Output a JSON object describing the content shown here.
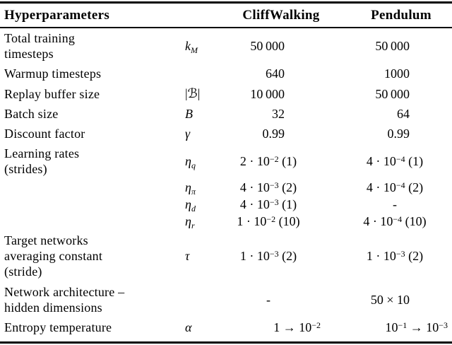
{
  "table": {
    "header": {
      "hyperparameters": "Hyperparameters",
      "cliffwalking": "CliffWalking",
      "pendulum": "Pendulum"
    },
    "rows": [
      {
        "label_lines": [
          "Total training",
          "timesteps"
        ],
        "symbol": [
          [
            "i",
            "k"
          ],
          [
            "sub",
            "M"
          ]
        ],
        "cliffwalking": {
          "align": "right",
          "parts": [
            [
              "t",
              "50 000"
            ]
          ]
        },
        "pendulum": {
          "align": "right",
          "parts": [
            [
              "t",
              "50 000"
            ]
          ]
        }
      },
      {
        "label_lines": [
          "Warmup timesteps"
        ],
        "symbol": [],
        "cliffwalking": {
          "align": "right",
          "parts": [
            [
              "t",
              "640"
            ]
          ]
        },
        "pendulum": {
          "align": "right",
          "parts": [
            [
              "t",
              "1000"
            ]
          ]
        }
      },
      {
        "label_lines": [
          "Replay buffer size"
        ],
        "symbol": [
          [
            "t",
            "|"
          ],
          [
            "scr",
            "ℬ"
          ],
          [
            "t",
            "|"
          ]
        ],
        "cliffwalking": {
          "align": "right",
          "parts": [
            [
              "t",
              "10 000"
            ]
          ]
        },
        "pendulum": {
          "align": "right",
          "parts": [
            [
              "t",
              "50 000"
            ]
          ]
        }
      },
      {
        "label_lines": [
          "Batch size"
        ],
        "symbol": [
          [
            "i",
            "B"
          ]
        ],
        "cliffwalking": {
          "align": "right",
          "parts": [
            [
              "t",
              "32"
            ]
          ]
        },
        "pendulum": {
          "align": "right",
          "parts": [
            [
              "t",
              "64"
            ]
          ]
        }
      },
      {
        "label_lines": [
          "Discount factor"
        ],
        "symbol": [
          [
            "i",
            "γ"
          ]
        ],
        "cliffwalking": {
          "align": "right",
          "parts": [
            [
              "t",
              "0.99"
            ]
          ]
        },
        "pendulum": {
          "align": "right",
          "parts": [
            [
              "t",
              "0.99"
            ]
          ]
        }
      },
      {
        "label_lines": [
          "Learning rates",
          "(strides)"
        ],
        "symbol": [
          [
            "i",
            "η"
          ],
          [
            "sub",
            "q"
          ]
        ],
        "cliffwalking": {
          "align": "center",
          "parts": [
            [
              "t",
              "2 · 10"
            ],
            [
              "sup",
              "−2"
            ],
            [
              "t",
              " (1)"
            ]
          ]
        },
        "pendulum": {
          "align": "center",
          "parts": [
            [
              "t",
              "4 · 10"
            ],
            [
              "sup",
              "−4"
            ],
            [
              "t",
              " (1)"
            ]
          ]
        }
      },
      {
        "label_lines": [],
        "symbol": [
          [
            "i",
            "η"
          ],
          [
            "sub",
            "π"
          ]
        ],
        "cliffwalking": {
          "align": "center",
          "parts": [
            [
              "t",
              "4 · 10"
            ],
            [
              "sup",
              "−3"
            ],
            [
              "t",
              " (2)"
            ]
          ]
        },
        "pendulum": {
          "align": "center",
          "parts": [
            [
              "t",
              "4 · 10"
            ],
            [
              "sup",
              "−4"
            ],
            [
              "t",
              " (2)"
            ]
          ]
        }
      },
      {
        "label_lines": [],
        "symbol": [
          [
            "i",
            "η"
          ],
          [
            "sub",
            "d"
          ]
        ],
        "cliffwalking": {
          "align": "center",
          "parts": [
            [
              "t",
              "4 · 10"
            ],
            [
              "sup",
              "−3"
            ],
            [
              "t",
              " (1)"
            ]
          ]
        },
        "pendulum": {
          "align": "center",
          "parts": [
            [
              "t",
              "-"
            ]
          ]
        }
      },
      {
        "label_lines": [],
        "symbol": [
          [
            "i",
            "η"
          ],
          [
            "sub",
            "r"
          ]
        ],
        "cliffwalking": {
          "align": "center",
          "parts": [
            [
              "t",
              "1 · 10"
            ],
            [
              "sup",
              "−2"
            ],
            [
              "t",
              " (10)"
            ]
          ]
        },
        "pendulum": {
          "align": "center",
          "parts": [
            [
              "t",
              "4 · 10"
            ],
            [
              "sup",
              "−4"
            ],
            [
              "t",
              " (10)"
            ]
          ]
        }
      },
      {
        "label_lines": [
          "Target networks",
          "averaging constant",
          "(stride)"
        ],
        "symbol": [
          [
            "i",
            "τ"
          ]
        ],
        "cliffwalking": {
          "align": "center",
          "parts": [
            [
              "t",
              "1 · 10"
            ],
            [
              "sup",
              "−3"
            ],
            [
              "t",
              " (2)"
            ]
          ]
        },
        "pendulum": {
          "align": "center",
          "parts": [
            [
              "t",
              "1 · 10"
            ],
            [
              "sup",
              "−3"
            ],
            [
              "t",
              " (2)"
            ]
          ]
        }
      },
      {
        "label_lines": [
          "Network architecture –",
          "hidden dimensions"
        ],
        "symbol": [],
        "cliffwalking": {
          "align": "center",
          "parts": [
            [
              "t",
              "-"
            ]
          ]
        },
        "pendulum": {
          "align": "right",
          "parts": [
            [
              "t",
              "50 × 10"
            ]
          ]
        }
      },
      {
        "label_lines": [
          "Entropy temperature"
        ],
        "symbol": [
          [
            "i",
            "α"
          ]
        ],
        "cliffwalking": {
          "align": "right2",
          "parts": [
            [
              "t",
              "1 → 10"
            ],
            [
              "sup",
              "−2"
            ]
          ]
        },
        "pendulum": {
          "align": "right2",
          "parts": [
            [
              "t",
              "10"
            ],
            [
              "sup",
              "−1"
            ],
            [
              "t",
              " → 10"
            ],
            [
              "sup",
              "−3"
            ]
          ]
        }
      }
    ]
  }
}
